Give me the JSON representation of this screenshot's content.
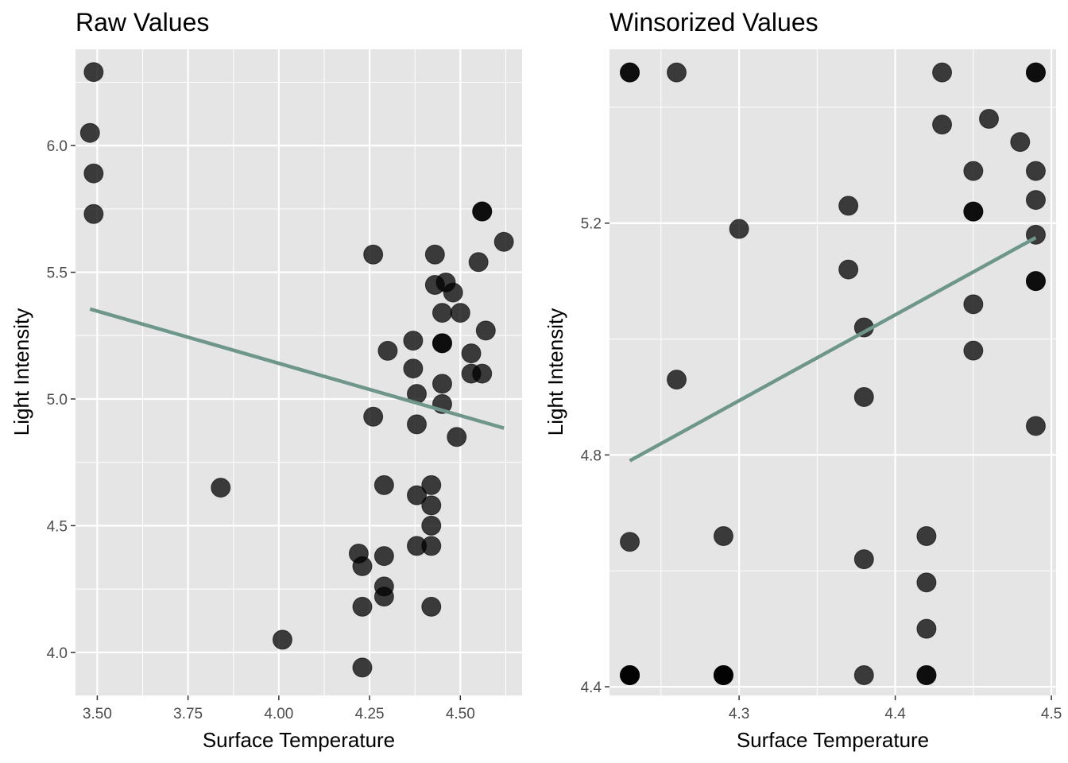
{
  "chart_data": [
    {
      "type": "scatter",
      "title": "Raw Values",
      "xlabel": "Surface Temperature",
      "ylabel": "Light Intensity",
      "xlim": [
        3.44,
        4.67
      ],
      "ylim": [
        3.83,
        6.38
      ],
      "xticks": [
        3.5,
        3.75,
        4.0,
        4.25,
        4.5
      ],
      "xtick_labels": [
        "3.50",
        "3.75",
        "4.00",
        "4.25",
        "4.50"
      ],
      "yticks": [
        4.0,
        4.5,
        5.0,
        5.5,
        6.0
      ],
      "ytick_labels": [
        "4.0",
        "4.5",
        "5.0",
        "5.5",
        "6.0"
      ],
      "grid": true,
      "colors": {
        "panel": "#e5e5e5",
        "grid": "#ffffff",
        "point": "#000000",
        "trend": "#6e968a"
      },
      "points": [
        {
          "x": 3.49,
          "y": 6.29
        },
        {
          "x": 3.48,
          "y": 6.05
        },
        {
          "x": 3.49,
          "y": 5.89
        },
        {
          "x": 3.49,
          "y": 5.73
        },
        {
          "x": 3.84,
          "y": 4.65
        },
        {
          "x": 4.01,
          "y": 4.05
        },
        {
          "x": 4.22,
          "y": 4.39
        },
        {
          "x": 4.23,
          "y": 4.34
        },
        {
          "x": 4.23,
          "y": 4.18
        },
        {
          "x": 4.23,
          "y": 3.94
        },
        {
          "x": 4.26,
          "y": 5.57
        },
        {
          "x": 4.26,
          "y": 4.93
        },
        {
          "x": 4.29,
          "y": 4.66
        },
        {
          "x": 4.29,
          "y": 4.38
        },
        {
          "x": 4.29,
          "y": 4.26
        },
        {
          "x": 4.29,
          "y": 4.22
        },
        {
          "x": 4.3,
          "y": 5.19
        },
        {
          "x": 4.37,
          "y": 5.23
        },
        {
          "x": 4.37,
          "y": 5.12
        },
        {
          "x": 4.38,
          "y": 5.02
        },
        {
          "x": 4.38,
          "y": 4.9
        },
        {
          "x": 4.38,
          "y": 4.62
        },
        {
          "x": 4.38,
          "y": 4.42
        },
        {
          "x": 4.42,
          "y": 4.66
        },
        {
          "x": 4.42,
          "y": 4.58
        },
        {
          "x": 4.42,
          "y": 4.5
        },
        {
          "x": 4.42,
          "y": 4.42
        },
        {
          "x": 4.42,
          "y": 4.18
        },
        {
          "x": 4.43,
          "y": 5.57
        },
        {
          "x": 4.43,
          "y": 5.45
        },
        {
          "x": 4.45,
          "y": 5.34
        },
        {
          "x": 4.45,
          "y": 5.22
        },
        {
          "x": 4.45,
          "y": 5.22
        },
        {
          "x": 4.45,
          "y": 5.06
        },
        {
          "x": 4.45,
          "y": 4.98
        },
        {
          "x": 4.46,
          "y": 5.46
        },
        {
          "x": 4.48,
          "y": 5.42
        },
        {
          "x": 4.49,
          "y": 4.85
        },
        {
          "x": 4.5,
          "y": 5.34
        },
        {
          "x": 4.53,
          "y": 5.18
        },
        {
          "x": 4.53,
          "y": 5.1
        },
        {
          "x": 4.55,
          "y": 5.54
        },
        {
          "x": 4.56,
          "y": 5.74
        },
        {
          "x": 4.56,
          "y": 5.74
        },
        {
          "x": 4.56,
          "y": 5.1
        },
        {
          "x": 4.57,
          "y": 5.27
        },
        {
          "x": 4.62,
          "y": 5.62
        }
      ],
      "trend_line": {
        "x": [
          3.48,
          4.62
        ],
        "y": [
          5.355,
          4.885
        ]
      }
    },
    {
      "type": "scatter",
      "title": "Winsorized Values",
      "xlabel": "Surface Temperature",
      "ylabel": "Light Intensity",
      "xlim": [
        4.217,
        4.503
      ],
      "ylim": [
        4.385,
        5.5
      ],
      "xticks": [
        4.3,
        4.4,
        4.5
      ],
      "xtick_labels": [
        "4.3",
        "4.4",
        "4.5"
      ],
      "yticks": [
        4.4,
        4.8,
        5.2
      ],
      "ytick_labels": [
        "4.4",
        "4.8",
        "5.2"
      ],
      "grid": true,
      "colors": {
        "panel": "#e5e5e5",
        "grid": "#ffffff",
        "point": "#000000",
        "trend": "#6e968a"
      },
      "points": [
        {
          "x": 4.23,
          "y": 5.46
        },
        {
          "x": 4.23,
          "y": 5.46
        },
        {
          "x": 4.26,
          "y": 5.46
        },
        {
          "x": 4.43,
          "y": 5.46
        },
        {
          "x": 4.49,
          "y": 5.46
        },
        {
          "x": 4.49,
          "y": 5.46
        },
        {
          "x": 4.43,
          "y": 5.37
        },
        {
          "x": 4.46,
          "y": 5.38
        },
        {
          "x": 4.48,
          "y": 5.34
        },
        {
          "x": 4.45,
          "y": 5.29
        },
        {
          "x": 4.49,
          "y": 5.29
        },
        {
          "x": 4.49,
          "y": 5.24
        },
        {
          "x": 4.37,
          "y": 5.23
        },
        {
          "x": 4.45,
          "y": 5.22
        },
        {
          "x": 4.45,
          "y": 5.22
        },
        {
          "x": 4.3,
          "y": 5.19
        },
        {
          "x": 4.49,
          "y": 5.18
        },
        {
          "x": 4.37,
          "y": 5.12
        },
        {
          "x": 4.49,
          "y": 5.1
        },
        {
          "x": 4.49,
          "y": 5.1
        },
        {
          "x": 4.45,
          "y": 5.06
        },
        {
          "x": 4.38,
          "y": 5.02
        },
        {
          "x": 4.45,
          "y": 4.98
        },
        {
          "x": 4.26,
          "y": 4.93
        },
        {
          "x": 4.38,
          "y": 4.9
        },
        {
          "x": 4.49,
          "y": 4.85
        },
        {
          "x": 4.23,
          "y": 4.65
        },
        {
          "x": 4.29,
          "y": 4.66
        },
        {
          "x": 4.42,
          "y": 4.66
        },
        {
          "x": 4.38,
          "y": 4.62
        },
        {
          "x": 4.42,
          "y": 4.58
        },
        {
          "x": 4.42,
          "y": 4.5
        },
        {
          "x": 4.23,
          "y": 4.42
        },
        {
          "x": 4.23,
          "y": 4.42
        },
        {
          "x": 4.23,
          "y": 4.42
        },
        {
          "x": 4.29,
          "y": 4.42
        },
        {
          "x": 4.29,
          "y": 4.42
        },
        {
          "x": 4.29,
          "y": 4.42
        },
        {
          "x": 4.38,
          "y": 4.42
        },
        {
          "x": 4.42,
          "y": 4.42
        },
        {
          "x": 4.42,
          "y": 4.42
        }
      ],
      "trend_line": {
        "x": [
          4.23,
          4.49
        ],
        "y": [
          4.79,
          5.175
        ]
      }
    }
  ]
}
